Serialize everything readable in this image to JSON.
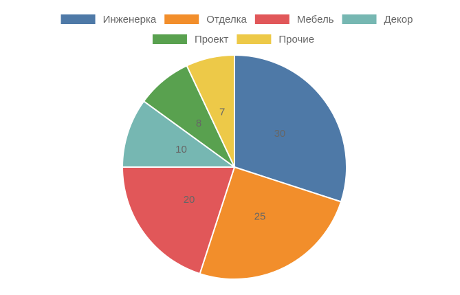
{
  "chart_data": {
    "type": "pie",
    "categories": [
      "Инженерка",
      "Отделка",
      "Мебель",
      "Декор",
      "Проект",
      "Прочие"
    ],
    "values": [
      30,
      25,
      20,
      10,
      8,
      7
    ],
    "colors": [
      "#4e79a7",
      "#f28e2b",
      "#e15759",
      "#76b7b2",
      "#59a14f",
      "#edc948"
    ],
    "legend": "top"
  }
}
